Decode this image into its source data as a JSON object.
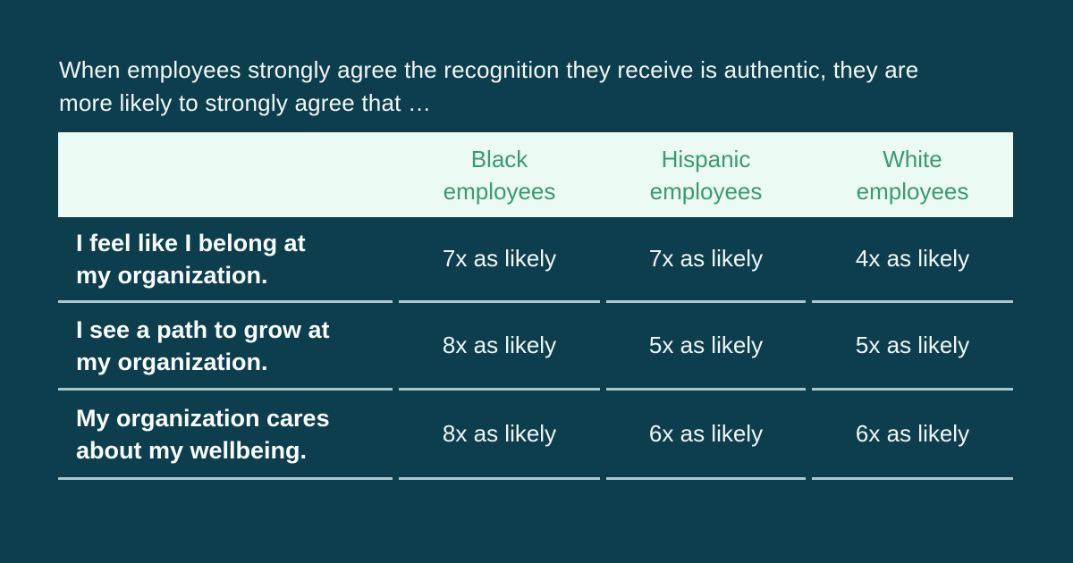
{
  "display": {
    "title": "When employees strongly agree the recognition they receive is authentic, they are\nmore likely to strongly agree that …",
    "headers": [
      "Black\nemployees",
      "Hispanic\nemployees",
      "White\nemployees"
    ],
    "statements": [
      "I feel like I belong at\nmy organization.",
      "I see a path to grow at\nmy organization.",
      "My organization cares\nabout my wellbeing."
    ]
  },
  "chart_data": {
    "type": "table",
    "title": "When employees strongly agree the recognition they receive is authentic, they are more likely to strongly agree that …",
    "columns": [
      "Black employees",
      "Hispanic employees",
      "White employees"
    ],
    "rows": [
      {
        "label": "I feel like I belong at my organization.",
        "values": [
          "7x as likely",
          "7x as likely",
          "4x as likely"
        ]
      },
      {
        "label": "I see a path to grow at my organization.",
        "values": [
          "8x as likely",
          "5x as likely",
          "5x as likely"
        ]
      },
      {
        "label": "My organization cares about my wellbeing.",
        "values": [
          "8x as likely",
          "6x as likely",
          "6x as likely"
        ]
      }
    ],
    "layout": {
      "header_position": "top",
      "grid": "horizontal-dividers-only"
    }
  },
  "colors": {
    "background": "#0d3e4d",
    "header_bg": "#ebfaf2",
    "header_text": "#3a9a72",
    "body_text": "#f8fcfb",
    "value_text": "#eef6f5",
    "divider": "#a6c8ce"
  }
}
